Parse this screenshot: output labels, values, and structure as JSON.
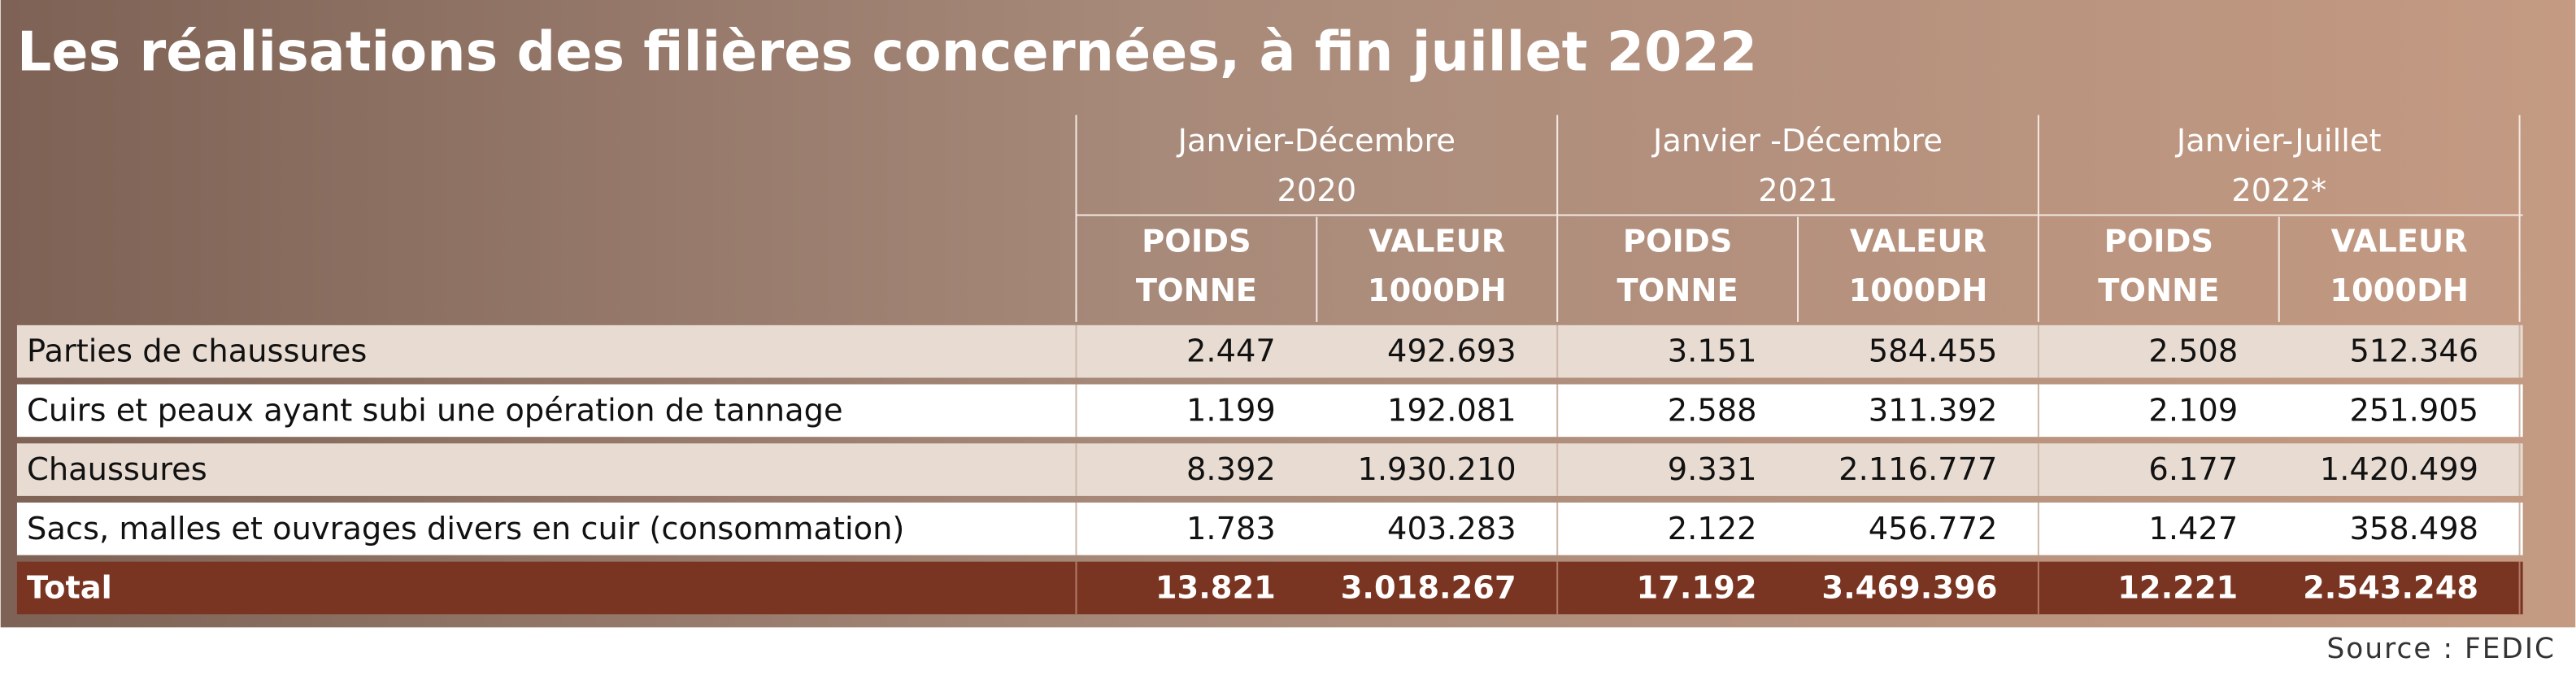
{
  "title": "Les réalisations des filières concernées, à fin juillet 2022",
  "column_groups": [
    [
      "Janvier-Décembre",
      "2020"
    ],
    [
      "Janvier -Décembre",
      "2021"
    ],
    [
      "Janvier-Juillet",
      "2022*"
    ]
  ],
  "sub_headers": [
    [
      "POIDS",
      "TONNE"
    ],
    [
      "VALEUR",
      "1000DH"
    ]
  ],
  "rows": [
    {
      "label": "Parties de chaussures",
      "values": [
        "2.447",
        "492.693",
        "3.151",
        "584.455",
        "2.508",
        "512.346"
      ]
    },
    {
      "label": "Cuirs et peaux ayant subi une opération de tannage",
      "values": [
        "1.199",
        "192.081",
        "2.588",
        "311.392",
        "2.109",
        "251.905"
      ]
    },
    {
      "label": "Chaussures",
      "values": [
        "8.392",
        "1.930.210",
        "9.331",
        "2.116.777",
        "6.177",
        "1.420.499"
      ]
    },
    {
      "label": "Sacs, malles et ouvrages divers en cuir (consommation)",
      "values": [
        "1.783",
        "403.283",
        "2.122",
        "456.772",
        "1.427",
        "358.498"
      ]
    },
    {
      "label": "Total",
      "values": [
        "13.821",
        "3.018.267",
        "17.192",
        "3.469.396",
        "12.221",
        "2.543.248"
      ]
    }
  ],
  "source": "Source : FEDIC"
}
